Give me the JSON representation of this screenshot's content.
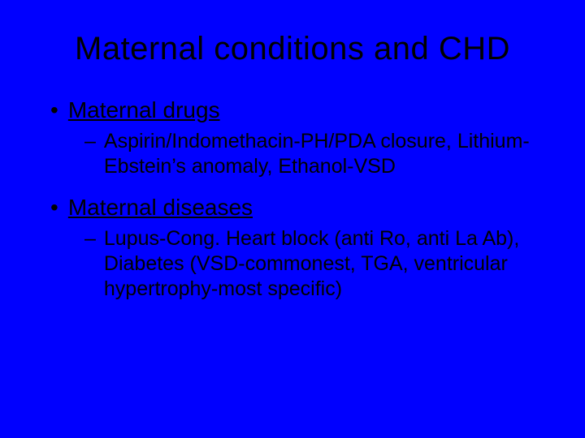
{
  "slide": {
    "background_color": "#0000ff",
    "text_color": "#000000",
    "font_family": "Arial",
    "title": {
      "text": "Maternal conditions and CHD",
      "fontsize": 40,
      "weight": 400,
      "align": "center"
    },
    "bullets": [
      {
        "level": 1,
        "marker": "•",
        "text": "Maternal drugs",
        "underline": true,
        "fontsize": 28
      },
      {
        "level": 2,
        "marker": "–",
        "text": "Aspirin/Indomethacin-PH/PDA closure, Lithium-Ebstein’s anomaly, Ethanol-VSD",
        "fontsize": 25
      },
      {
        "level": 1,
        "marker": "•",
        "text": "Maternal diseases",
        "underline": true,
        "fontsize": 28
      },
      {
        "level": 2,
        "marker": "–",
        "text": "Lupus-Cong. Heart block (anti Ro, anti La Ab), Diabetes (VSD-commonest, TGA, ventricular hypertrophy-most specific)",
        "fontsize": 25
      }
    ]
  }
}
